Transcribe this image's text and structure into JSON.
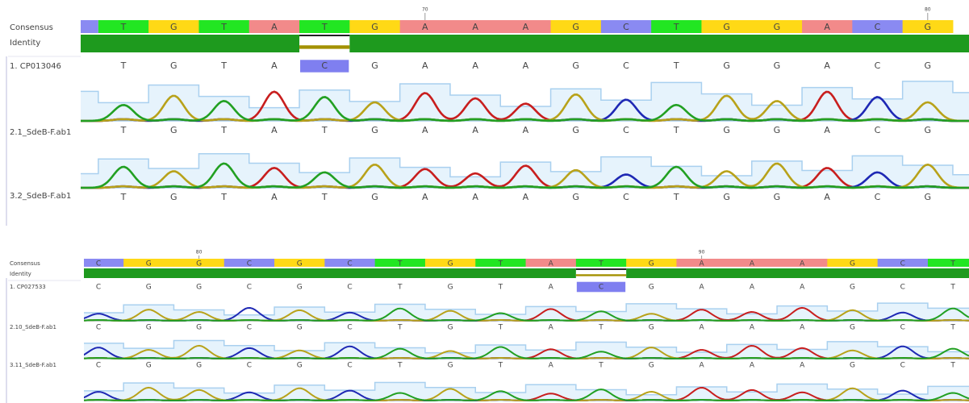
{
  "panels": [
    {
      "position_labels": [
        "70",
        "80"
      ],
      "consensus": {
        "label": "Consensus",
        "bases": [
          "T",
          "G",
          "T",
          "A",
          "T",
          "G",
          "A",
          "A",
          "A",
          "G",
          "C",
          "T",
          "G",
          "G",
          "A",
          "C",
          "G"
        ]
      },
      "identity": {
        "label": "Identity"
      },
      "rows": [
        {
          "label": "1. CP013046",
          "bases": [
            "T",
            "G",
            "T",
            "A",
            "C",
            "G",
            "A",
            "A",
            "A",
            "G",
            "C",
            "T",
            "G",
            "G",
            "A",
            "C",
            "G"
          ]
        },
        {
          "label": "2.1_SdeB-F.ab1",
          "bases": [
            "T",
            "G",
            "T",
            "A",
            "T",
            "G",
            "A",
            "A",
            "A",
            "G",
            "C",
            "T",
            "G",
            "G",
            "A",
            "C",
            "G"
          ]
        },
        {
          "label": "3.2_SdeB-F.ab1",
          "bases": [
            "T",
            "G",
            "T",
            "A",
            "T",
            "G",
            "A",
            "A",
            "A",
            "G",
            "C",
            "T",
            "G",
            "G",
            "A",
            "C",
            "G"
          ]
        }
      ]
    },
    {
      "position_labels": [
        "80",
        "90"
      ],
      "consensus": {
        "label": "Consensus",
        "bases": [
          "C",
          "G",
          "G",
          "C",
          "G",
          "C",
          "T",
          "G",
          "T",
          "A",
          "T",
          "G",
          "A",
          "A",
          "A",
          "G",
          "C",
          "T"
        ]
      },
      "identity": {
        "label": "Identity"
      },
      "rows": [
        {
          "label": "1. CP027533",
          "bases": [
            "C",
            "G",
            "G",
            "C",
            "G",
            "C",
            "T",
            "G",
            "T",
            "A",
            "C",
            "G",
            "A",
            "A",
            "A",
            "G",
            "C",
            "T"
          ]
        },
        {
          "label": "2.10_SdeB-F.ab1",
          "bases": [
            "C",
            "G",
            "G",
            "C",
            "G",
            "C",
            "T",
            "G",
            "T",
            "A",
            "T",
            "G",
            "A",
            "A",
            "A",
            "G",
            "C",
            "T"
          ]
        },
        {
          "label": "3.11_SdeB-F.ab1",
          "bases": [
            "C",
            "G",
            "G",
            "C",
            "G",
            "C",
            "T",
            "G",
            "T",
            "A",
            "T",
            "G",
            "A",
            "A",
            "A",
            "G",
            "C",
            "T"
          ]
        }
      ]
    }
  ]
}
